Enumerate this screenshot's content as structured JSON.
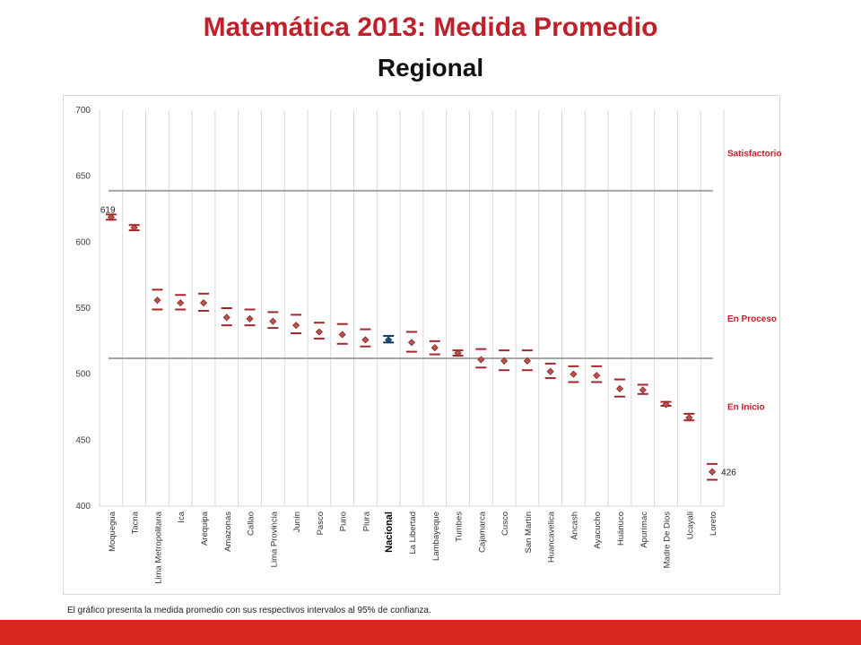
{
  "slide": {
    "title": "Matemática 2013: Medida Promedio",
    "subtitle": "Regional",
    "footnote": "El gráfico presenta la medida promedio con sus respectivos intervalos  al 95% de confianza.",
    "accent_color": "#c0202a",
    "footer_color": "#d9261c"
  },
  "chart_data": {
    "type": "scatter",
    "title": "",
    "xlabel": "",
    "ylabel": "",
    "ylim": [
      400,
      700
    ],
    "yticks": [
      400,
      450,
      500,
      550,
      600,
      650,
      700
    ],
    "grid": "vertical",
    "categories": [
      "Moquegua",
      "Tacna",
      "Lima Metropolitana",
      "Ica",
      "Arequipa",
      "Amazonas",
      "Callao",
      "Lima Provincia",
      "Junín",
      "Pasco",
      "Puno",
      "Piura",
      "Nacional",
      "La Libertad",
      "Lambayeque",
      "Tumbes",
      "Cajamarca",
      "Cusco",
      "San Martín",
      "Huancavelica",
      "Áncash",
      "Ayacucho",
      "Huánuco",
      "Apurímac",
      "Madre De Dios",
      "Ucayali",
      "Loreto"
    ],
    "highlight_category": "Nacional",
    "series": [
      {
        "values": [
          619,
          611,
          556,
          554,
          554,
          543,
          542,
          540,
          537,
          532,
          530,
          526,
          526,
          524,
          520,
          516,
          511,
          510,
          510,
          502,
          500,
          499,
          489,
          488,
          477,
          467,
          426
        ],
        "lower": [
          617,
          609,
          549,
          549,
          548,
          537,
          537,
          535,
          531,
          527,
          523,
          521,
          524,
          517,
          515,
          514,
          505,
          503,
          503,
          497,
          494,
          494,
          483,
          485,
          476,
          465,
          420
        ],
        "upper": [
          621,
          613,
          564,
          560,
          561,
          550,
          549,
          547,
          545,
          539,
          538,
          534,
          529,
          532,
          525,
          518,
          519,
          518,
          518,
          508,
          506,
          506,
          496,
          492,
          479,
          470,
          432
        ]
      }
    ],
    "reference_lines": [
      639,
      512
    ],
    "bands": [
      "Satisfactorio",
      "En Proceso",
      "En Inicio"
    ],
    "band_label_values": [
      667,
      542,
      475
    ],
    "annotations": [
      {
        "category": "Moquegua",
        "text": "619"
      },
      {
        "category": "Loreto",
        "text": "426"
      }
    ],
    "colors": {
      "marker": "#c0504d",
      "marker_edge": "#7f2a28",
      "interval": "#a3262b",
      "highlight_marker": "#1f4e79",
      "highlight_interval": "#17375e",
      "reference_line": "#a6a6a6",
      "grid": "#d9d9d9",
      "band_label": "#c0202a"
    }
  }
}
